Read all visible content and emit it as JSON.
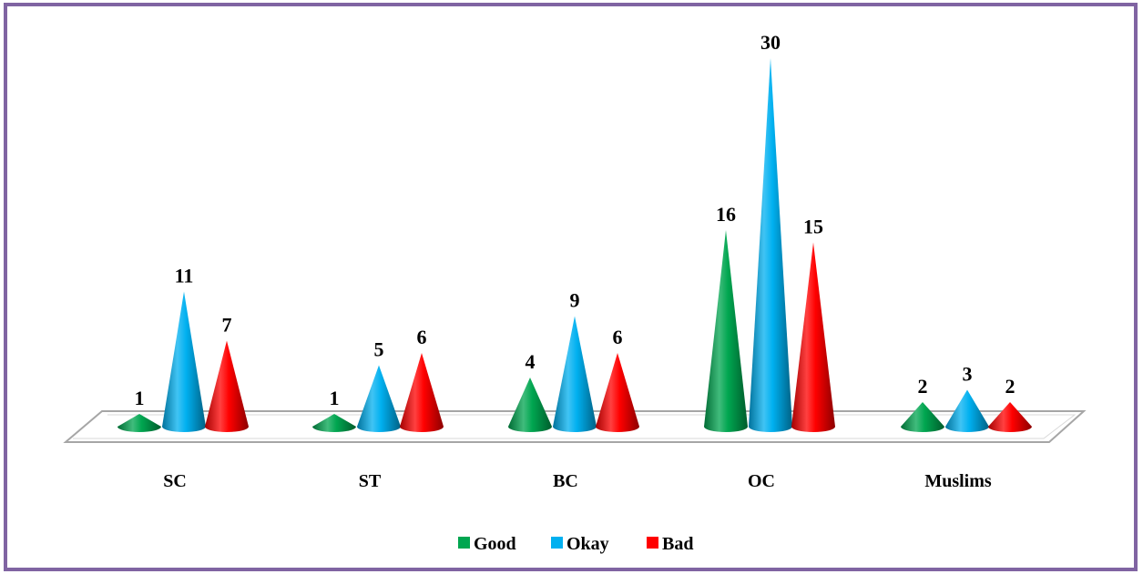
{
  "chart_data": {
    "type": "bar",
    "style": "3d-cone",
    "categories": [
      "SC",
      "ST",
      "BC",
      "OC",
      "Muslims"
    ],
    "series": [
      {
        "name": "Good",
        "color": "#00a650",
        "values": [
          1,
          1,
          4,
          16,
          2
        ]
      },
      {
        "name": "Okay",
        "color": "#00b0f0",
        "values": [
          11,
          5,
          9,
          30,
          3
        ]
      },
      {
        "name": "Bad",
        "color": "#ff0000",
        "values": [
          7,
          6,
          6,
          15,
          2
        ]
      }
    ],
    "ylim": [
      0,
      30
    ],
    "grid": false,
    "legend_position": "bottom",
    "data_labels": true
  }
}
